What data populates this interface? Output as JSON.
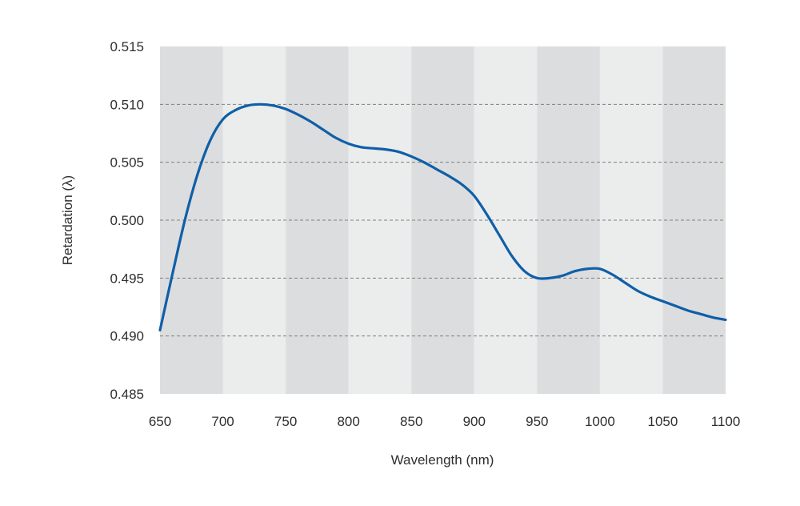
{
  "chart_data": {
    "type": "line",
    "title": "",
    "xlabel": "Wavelength (nm)",
    "ylabel": "Retardation (λ)",
    "xlim": [
      650,
      1100
    ],
    "ylim": [
      0.485,
      0.515
    ],
    "x_ticks": [
      650,
      700,
      750,
      800,
      850,
      900,
      950,
      1000,
      1050,
      1100
    ],
    "x_tick_labels": [
      "650",
      "700",
      "750",
      "800",
      "850",
      "900",
      "950",
      "1000",
      "1050",
      "1100"
    ],
    "y_ticks": [
      0.485,
      0.49,
      0.495,
      0.5,
      0.505,
      0.51,
      0.515
    ],
    "y_tick_labels": [
      "0.485",
      "0.490",
      "0.495",
      "0.500",
      "0.505",
      "0.510",
      "0.515"
    ],
    "grid": true,
    "grid_style": "dashed-horizontal",
    "legend": "none",
    "colors": {
      "line": "#0f5fa8",
      "band_dark": "#dcdddf",
      "band_light": "#ebecec",
      "grid": "#7f7f7f",
      "text": "#2f2f2f"
    },
    "series": [
      {
        "name": "",
        "x": [
          650,
          660,
          670,
          680,
          690,
          700,
          710,
          720,
          730,
          740,
          750,
          760,
          770,
          780,
          790,
          800,
          810,
          820,
          830,
          840,
          850,
          860,
          870,
          880,
          890,
          900,
          910,
          920,
          930,
          940,
          950,
          960,
          970,
          980,
          990,
          1000,
          1010,
          1020,
          1030,
          1040,
          1050,
          1060,
          1070,
          1080,
          1090,
          1100
        ],
        "y": [
          0.4905,
          0.4954,
          0.5001,
          0.504,
          0.5069,
          0.5087,
          0.5095,
          0.5099,
          0.51,
          0.5099,
          0.5096,
          0.5091,
          0.5085,
          0.5078,
          0.5071,
          0.5066,
          0.5063,
          0.5062,
          0.5061,
          0.5059,
          0.5055,
          0.505,
          0.5044,
          0.5038,
          0.5031,
          0.5021,
          0.5005,
          0.4987,
          0.4969,
          0.4956,
          0.495,
          0.495,
          0.4952,
          0.4956,
          0.4958,
          0.4958,
          0.4953,
          0.4946,
          0.4939,
          0.4934,
          0.493,
          0.4926,
          0.4922,
          0.4919,
          0.4916,
          0.4914
        ]
      }
    ]
  }
}
